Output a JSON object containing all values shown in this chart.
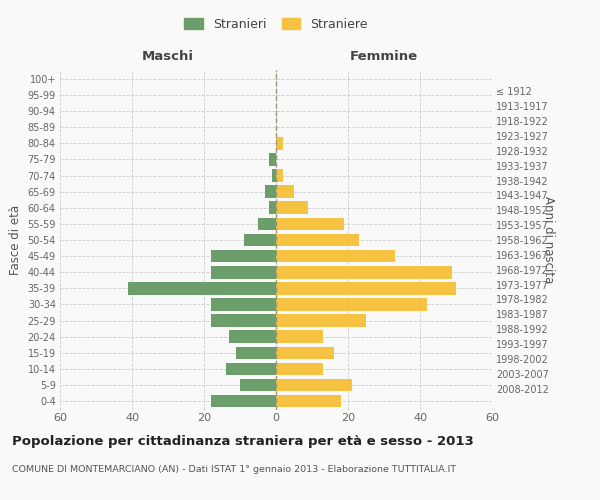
{
  "age_groups_bottom_to_top": [
    "0-4",
    "5-9",
    "10-14",
    "15-19",
    "20-24",
    "25-29",
    "30-34",
    "35-39",
    "40-44",
    "45-49",
    "50-54",
    "55-59",
    "60-64",
    "65-69",
    "70-74",
    "75-79",
    "80-84",
    "85-89",
    "90-94",
    "95-99",
    "100+"
  ],
  "birth_years_bottom_to_top": [
    "2008-2012",
    "2003-2007",
    "1998-2002",
    "1993-1997",
    "1988-1992",
    "1983-1987",
    "1978-1982",
    "1973-1977",
    "1968-1972",
    "1963-1967",
    "1958-1962",
    "1953-1957",
    "1948-1952",
    "1943-1947",
    "1938-1942",
    "1933-1937",
    "1928-1932",
    "1923-1927",
    "1918-1922",
    "1913-1917",
    "≤ 1912"
  ],
  "maschi_bottom_to_top": [
    18,
    10,
    14,
    11,
    13,
    18,
    18,
    41,
    18,
    18,
    9,
    5,
    2,
    3,
    1,
    2,
    0,
    0,
    0,
    0,
    0
  ],
  "femmine_bottom_to_top": [
    18,
    21,
    13,
    16,
    13,
    25,
    42,
    50,
    49,
    33,
    23,
    19,
    9,
    5,
    2,
    0,
    2,
    0,
    0,
    0,
    0
  ],
  "maschi_color": "#6b9e6b",
  "femmine_color": "#f5c242",
  "background_color": "#f9f9f9",
  "grid_color": "#cccccc",
  "title": "Popolazione per cittadinanza straniera per età e sesso - 2013",
  "subtitle": "COMUNE DI MONTEMARCIANO (AN) - Dati ISTAT 1° gennaio 2013 - Elaborazione TUTTITALIA.IT",
  "left_header": "Maschi",
  "right_header": "Femmine",
  "left_yaxis_label": "Fasce di età",
  "right_yaxis_label": "Anni di nascita",
  "legend_stranieri": "Stranieri",
  "legend_straniere": "Straniere",
  "xlim": 60
}
